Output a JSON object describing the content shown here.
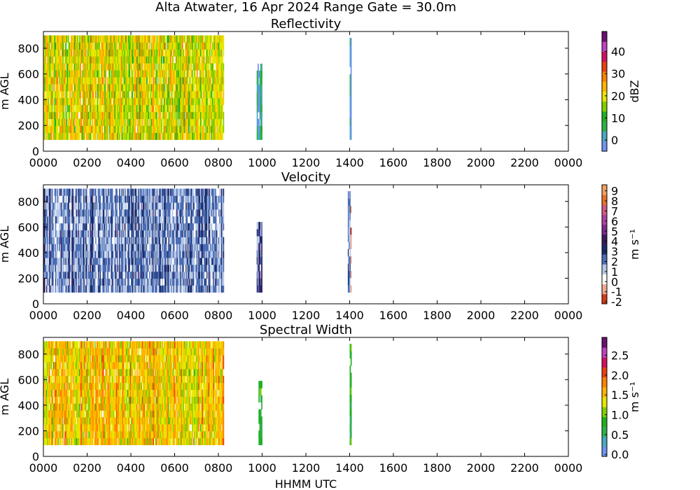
{
  "figure": {
    "title": "Alta Atwater, 16 Apr 2024 Range Gate = 30.0m",
    "xlabel": "HHMM UTC"
  },
  "chart_data": [
    {
      "type": "heatmap",
      "title": "Reflectivity",
      "ylabel": "m AGL",
      "xlim": [
        "0000",
        "0000"
      ],
      "x_tick_labels": [
        "0000",
        "0200",
        "0400",
        "0600",
        "0800",
        "1000",
        "1200",
        "1400",
        "1600",
        "1800",
        "2000",
        "2200",
        "0000"
      ],
      "ylim": [
        0,
        930
      ],
      "y_ticks": [
        0,
        200,
        400,
        600,
        800
      ],
      "colorbar": {
        "label": "dBZ",
        "range": [
          -5,
          49
        ],
        "ticks": [
          0,
          10,
          20,
          30,
          40
        ],
        "tick_labels": [
          "0",
          "10",
          "20",
          "30",
          "40"
        ],
        "colors": [
          "#6e94f0",
          "#4aa8c0",
          "#2eb04a",
          "#1eb01e",
          "#7fd000",
          "#e6e600",
          "#ffb400",
          "#ff8000",
          "#e84010",
          "#d01060",
          "#c040c0",
          "#6a1070"
        ]
      },
      "height_range_m": [
        90,
        900
      ],
      "segments": [
        {
          "start": "0000",
          "end": "0815",
          "top_m": 900,
          "dominant": "green-yellow-orange",
          "approx_value": 20
        },
        {
          "start": "0945",
          "end": "1000",
          "top_m": 680,
          "dominant": "blue",
          "approx_value": 2
        },
        {
          "start": "1400",
          "end": "1405",
          "top_m": 880,
          "dominant": "light blue",
          "approx_value": 0
        }
      ]
    },
    {
      "type": "heatmap",
      "title": "Velocity",
      "ylabel": "m s⁻¹",
      "ylabel_left": "m AGL",
      "ylim": [
        0,
        930
      ],
      "y_ticks": [
        0,
        200,
        400,
        600,
        800
      ],
      "colorbar": {
        "label": "m s⁻¹",
        "range": [
          -2.2,
          9.6
        ],
        "ticks": [
          -2,
          -1,
          0,
          1,
          2,
          3,
          4,
          5,
          6,
          7,
          8,
          9
        ],
        "tick_labels": [
          "-2",
          "-1",
          "0",
          "1",
          "2",
          "3",
          "4",
          "5",
          "6",
          "7",
          "8",
          "9"
        ],
        "colors": [
          "#d43a14",
          "#f0a890",
          "#ffffff",
          "#b6c8e6",
          "#4a6cb4",
          "#1a2c6a",
          "#3a1a5a",
          "#7a2a8c",
          "#b040a0",
          "#d05a80",
          "#e8702a",
          "#f4a060"
        ]
      },
      "height_range_m": [
        90,
        900
      ],
      "segments": [
        {
          "start": "0000",
          "end": "0815",
          "top_m": 900,
          "dominant": "blue",
          "approx_value": 2
        },
        {
          "start": "0945",
          "end": "1000",
          "top_m": 640,
          "dominant": "dark blue",
          "approx_value": 3
        },
        {
          "start": "1355",
          "end": "1405",
          "top_m": 880,
          "dominant": "blue",
          "approx_value": 1
        }
      ]
    },
    {
      "type": "heatmap",
      "title": "Spectral Width",
      "ylabel": "m s⁻¹",
      "ylabel_left": "m AGL",
      "ylim": [
        0,
        930
      ],
      "y_ticks": [
        0,
        200,
        400,
        600,
        800
      ],
      "colorbar": {
        "label": "m s⁻¹",
        "range": [
          -0.05,
          2.95
        ],
        "ticks": [
          0.0,
          0.5,
          1.0,
          1.5,
          2.0,
          2.5
        ],
        "tick_labels": [
          "0.0",
          "0.5",
          "1.0",
          "1.5",
          "2.0",
          "2.5"
        ],
        "colors": [
          "#6e94f0",
          "#4aa8c0",
          "#2eb04a",
          "#1eb01e",
          "#7fd000",
          "#e6e600",
          "#ffb400",
          "#ff8000",
          "#e84010",
          "#d01060",
          "#c040c0",
          "#6a1070"
        ]
      },
      "height_range_m": [
        90,
        900
      ],
      "segments": [
        {
          "start": "0000",
          "end": "0815",
          "top_m": 900,
          "dominant": "yellow-orange-green",
          "approx_value": 1.5
        },
        {
          "start": "0950",
          "end": "1000",
          "top_m": 590,
          "dominant": "green",
          "approx_value": 0.9
        },
        {
          "start": "1400",
          "end": "1405",
          "top_m": 880,
          "dominant": "green-blue",
          "approx_value": 0.6
        }
      ]
    }
  ]
}
